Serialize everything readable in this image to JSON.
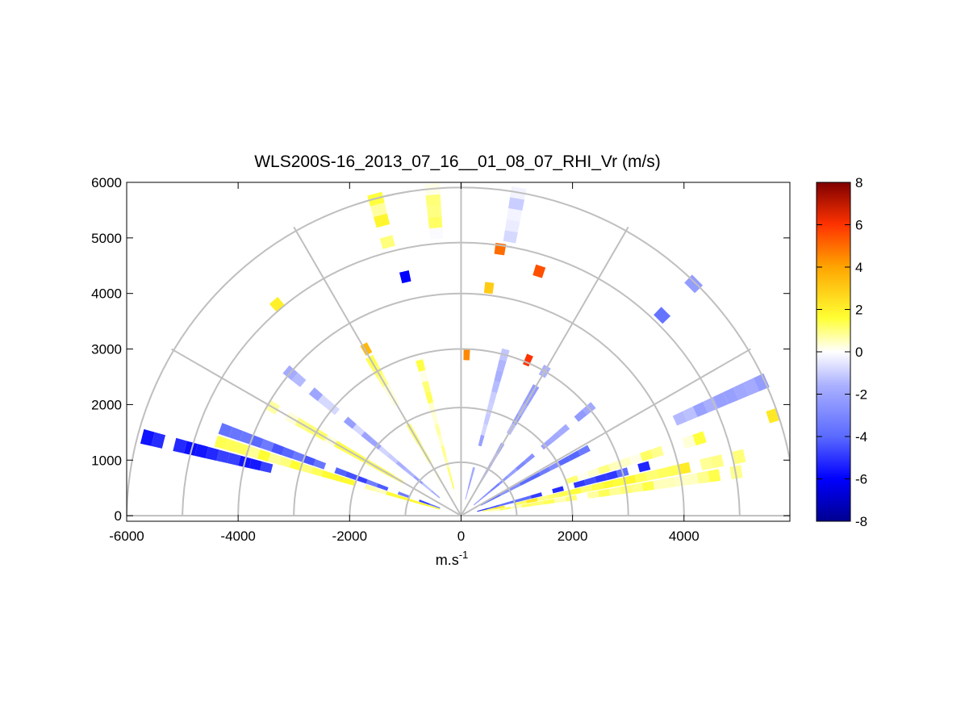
{
  "chart_data": {
    "type": "rhi_polar_colormesh",
    "title": "WLS200S-16_2013_07_16__01_08_07_RHI_Vr (m/s)",
    "xlabel_main": "m.s",
    "xlabel_sup": "-1",
    "ylabel": "",
    "xlim": [
      -6000,
      5900
    ],
    "ylim": [
      -100,
      6000
    ],
    "xticks": [
      -6000,
      -4000,
      -2000,
      0,
      2000,
      4000
    ],
    "xtick_labels": [
      "-6000",
      "-4000",
      "-2000",
      "0",
      "2000",
      "4000"
    ],
    "yticks": [
      0,
      1000,
      2000,
      3000,
      4000,
      5000,
      6000
    ],
    "ytick_labels": [
      "0",
      "1000",
      "2000",
      "3000",
      "4000",
      "5000",
      "6000"
    ],
    "range_rings_m": [
      1000,
      2000,
      3000,
      4000,
      5000,
      6000
    ],
    "spokes_deg": [
      0,
      30,
      60,
      90,
      120,
      150,
      180
    ],
    "colorbar": {
      "min": -8,
      "max": 8,
      "ticks": [
        -8,
        -6,
        -4,
        -2,
        0,
        2,
        4,
        6,
        8
      ],
      "tick_labels": [
        "-8",
        "-6",
        "-4",
        "-2",
        "0",
        "2",
        "4",
        "6",
        "8"
      ],
      "colors": [
        "#00008f",
        "#0000ff",
        "#5a6aff",
        "#aab0ff",
        "#ffffff",
        "#ffff33",
        "#ffa500",
        "#ff3300",
        "#800000"
      ]
    },
    "sectors": [
      {
        "elev_deg": 9,
        "r0": 300,
        "r1": 5000,
        "value": 0.8,
        "note": "right low beam, yellow"
      },
      {
        "elev_deg": 12,
        "r0": 400,
        "r1": 5200,
        "value": 1.5,
        "note": "right low, orange/yellow"
      },
      {
        "elev_deg": 15,
        "r0": 300,
        "r1": 3500,
        "value": -4.5,
        "note": "right thin blue line"
      },
      {
        "elev_deg": 18,
        "r0": 2000,
        "r1": 4500,
        "value": 0.9,
        "note": "right yellow streak"
      },
      {
        "elev_deg": 24,
        "r0": 4000,
        "r1": 6000,
        "value": -2.0,
        "note": "right far light blue band"
      },
      {
        "elev_deg": 28,
        "r0": 400,
        "r1": 2500,
        "value": -3.5,
        "note": "right inner blue"
      },
      {
        "elev_deg": 40,
        "r0": 300,
        "r1": 3000,
        "value": -2.5,
        "note": "upper right blue"
      },
      {
        "elev_deg": 45,
        "r0": 4800,
        "r1": 6000,
        "value": -3.0,
        "note": "far blue cluster"
      },
      {
        "elev_deg": 60,
        "r0": 300,
        "r1": 3000,
        "value": -1.8,
        "note": "upper blue"
      },
      {
        "elev_deg": 75,
        "r0": 300,
        "r1": 3000,
        "value": -1.5,
        "note": "near-vertical blue"
      },
      {
        "elev_deg": 80,
        "r0": 5000,
        "r1": 6000,
        "value": -1.0,
        "note": "top light blue"
      },
      {
        "elev_deg": 95,
        "r0": 5000,
        "r1": 6000,
        "value": 0.6,
        "note": "top yellow band"
      },
      {
        "elev_deg": 105,
        "r0": 300,
        "r1": 3000,
        "value": 0.8,
        "note": "upper left yellow"
      },
      {
        "elev_deg": 105,
        "r0": 5000,
        "r1": 6000,
        "value": 1.2,
        "note": "top-left yellow"
      },
      {
        "elev_deg": 120,
        "r0": 300,
        "r1": 3500,
        "value": 0.7,
        "note": "left yellow"
      },
      {
        "elev_deg": 140,
        "r0": 500,
        "r1": 4000,
        "value": -1.5,
        "note": "left light blue"
      },
      {
        "elev_deg": 150,
        "r0": 400,
        "r1": 4000,
        "value": 1.0,
        "note": "left yellow"
      },
      {
        "elev_deg": 160,
        "r0": 400,
        "r1": 4500,
        "value": -4.0,
        "note": "left blue streak"
      },
      {
        "elev_deg": 163,
        "r0": 400,
        "r1": 4500,
        "value": 1.2,
        "note": "left yellow streak"
      },
      {
        "elev_deg": 166,
        "r0": 3500,
        "r1": 5800,
        "value": -5.0,
        "note": "far left blue"
      }
    ],
    "isolated_cells": [
      {
        "x": 1400,
        "y": 4400,
        "value": 5.5
      },
      {
        "x": 700,
        "y": 4800,
        "value": 5.0
      },
      {
        "x": 500,
        "y": 4100,
        "value": 3.0
      },
      {
        "x": 1200,
        "y": 2800,
        "value": 6.0
      },
      {
        "x": -1700,
        "y": 3000,
        "value": 3.5
      },
      {
        "x": -1000,
        "y": 4300,
        "value": -6.0
      },
      {
        "x": -3300,
        "y": 3800,
        "value": 2.0
      },
      {
        "x": 100,
        "y": 2900,
        "value": 4.5
      },
      {
        "x": 5600,
        "y": 1800,
        "value": 2.2
      }
    ]
  }
}
